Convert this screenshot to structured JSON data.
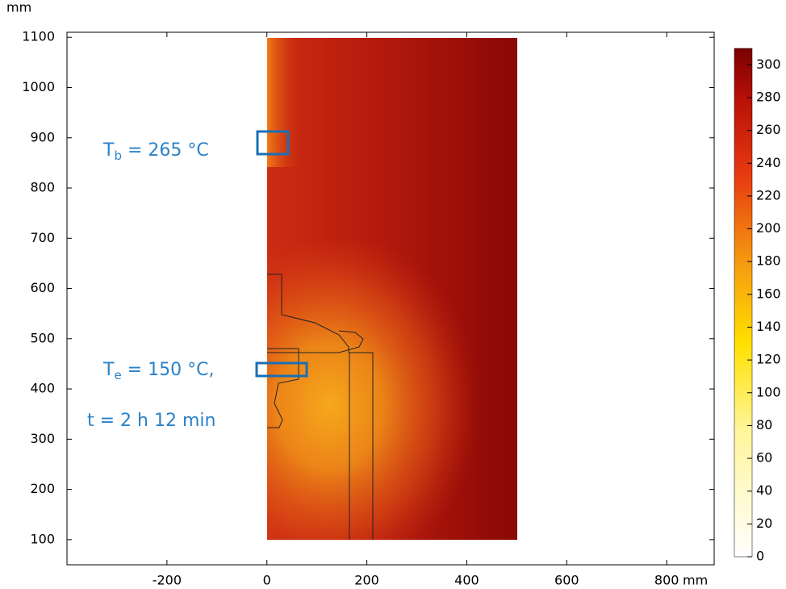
{
  "chart_data": {
    "type": "surface",
    "x_unit": "mm",
    "y_unit": "mm",
    "xlim": [
      -400,
      895
    ],
    "xticks": [
      -200,
      0,
      200,
      400,
      600,
      800
    ],
    "ylim": [
      50,
      1110
    ],
    "yticks": [
      100,
      200,
      300,
      400,
      500,
      600,
      700,
      800,
      900,
      1000,
      1100
    ],
    "colorbar": {
      "lim": [
        0,
        310
      ],
      "ticks": [
        0,
        20,
        40,
        60,
        80,
        100,
        120,
        140,
        160,
        180,
        200,
        220,
        240,
        260,
        280,
        300
      ]
    },
    "annotations": [
      {
        "symbol": "T",
        "subscript": "b",
        "text": " = 265 °C"
      },
      {
        "symbol": "T",
        "subscript": "e",
        "text": " = 150 °C,"
      },
      {
        "text": "t = 2 h 12 min"
      }
    ]
  }
}
